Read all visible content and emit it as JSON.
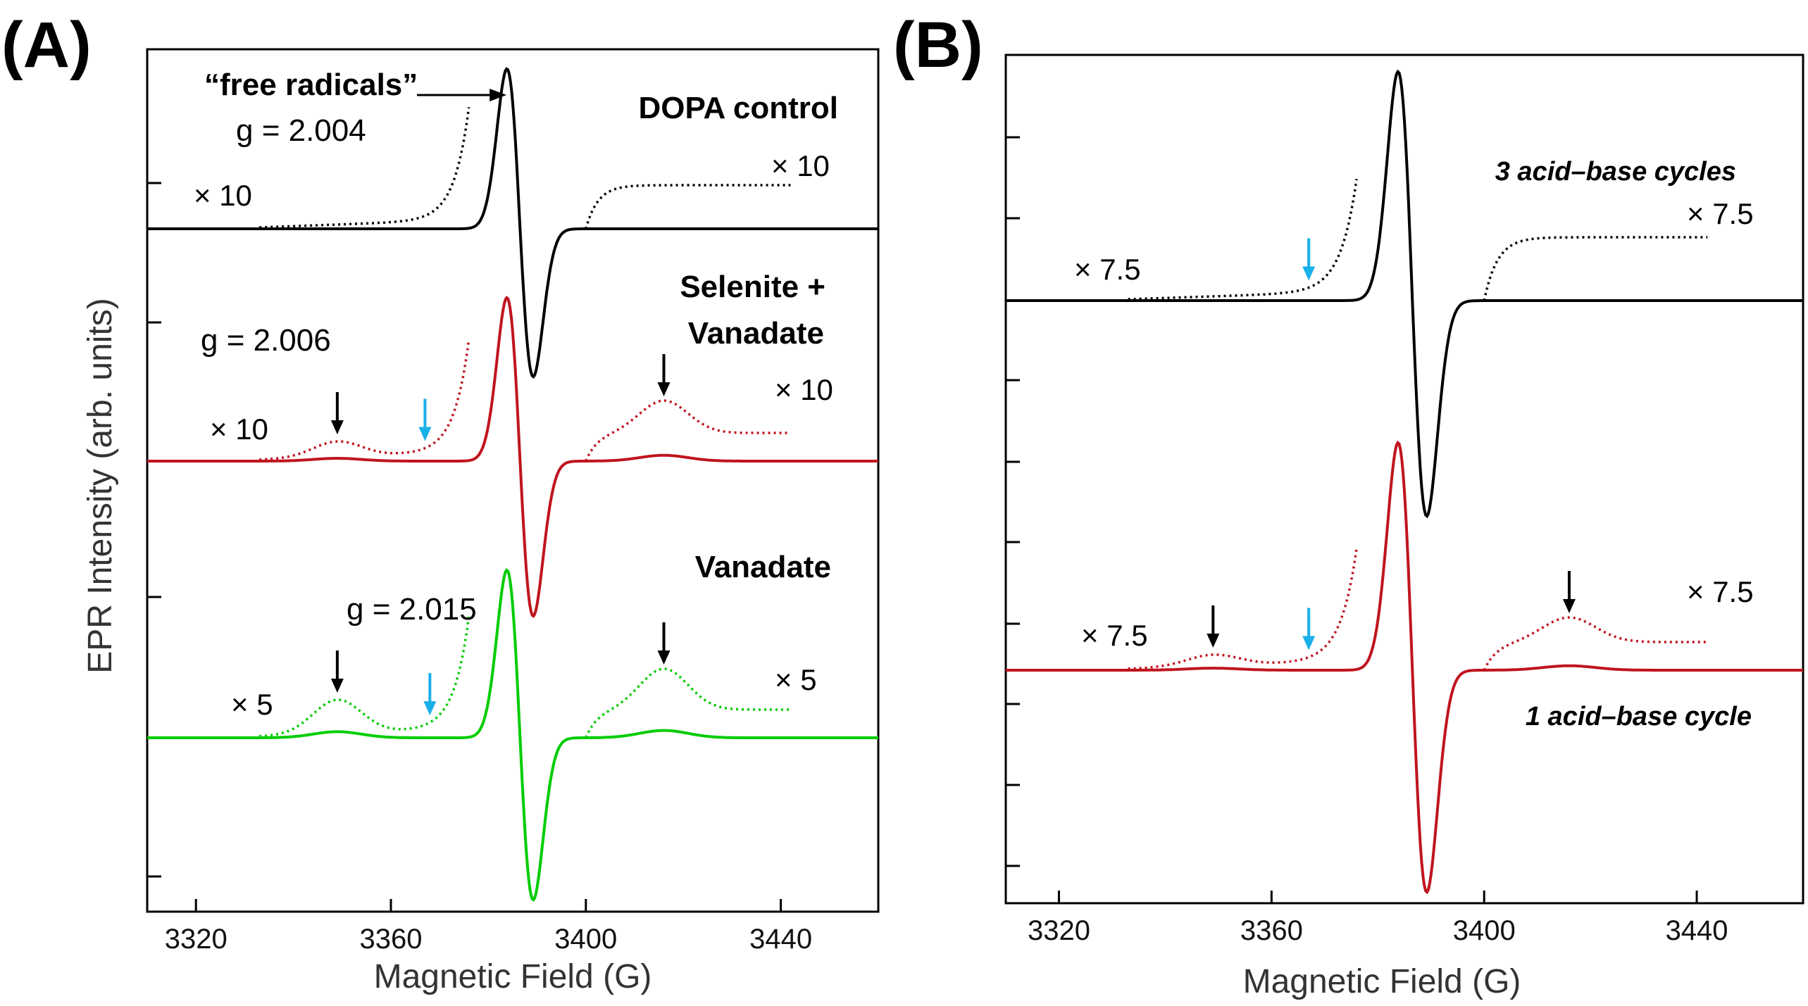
{
  "chart_data": [
    {
      "type": "line",
      "panel_label": "(A)",
      "xlabel": "Magnetic  Field (G)",
      "ylabel": "EPR  Intensity (arb.  units)",
      "xlim": [
        3310,
        3460
      ],
      "x_ticks": [
        3320,
        3360,
        3400,
        3440
      ],
      "x_tick_labels": [
        "3320",
        "3360",
        "3400",
        "3440"
      ],
      "series": [
        {
          "name": "DOPA control",
          "color": "#000000",
          "baseline_level": 0,
          "peak_center": 3386.5,
          "peak_up": 1.0,
          "peak_down": -1.0,
          "scale_label_left": "× 10",
          "scale_label_right": "× 10",
          "features": []
        },
        {
          "name": "Selenite + Vanadate",
          "color": "#c0141e",
          "baseline_level": -1,
          "peak_center": 3386.5,
          "peak_up": 1.0,
          "peak_down": -1.0,
          "scale_label_left": "× 10",
          "scale_label_right": "× 10",
          "features": [
            {
              "field": 3349,
              "marker": "black"
            },
            {
              "field": 3367,
              "marker": "cyan"
            },
            {
              "field": 3416,
              "marker": "black"
            }
          ]
        },
        {
          "name": "Vanadate",
          "color": "#00cc00",
          "baseline_level": -2,
          "peak_center": 3386.5,
          "peak_up": 1.0,
          "peak_down": -1.0,
          "scale_label_left": "× 5",
          "scale_label_right": "× 5",
          "features": [
            {
              "field": 3349,
              "marker": "black"
            },
            {
              "field": 3368,
              "marker": "cyan"
            },
            {
              "field": 3416,
              "marker": "black"
            }
          ]
        }
      ],
      "annotations": {
        "free_radicals": "“free radicals”",
        "g_dopa": "g = 2.004",
        "g_selenite": "g = 2.006",
        "g_vanadate": "g = 2.015",
        "label_dopa": "DOPA control",
        "label_selenite_1": "Selenite +",
        "label_selenite_2": "Vanadate",
        "label_vanadate": "Vanadate"
      }
    },
    {
      "type": "line",
      "panel_label": "(B)",
      "xlabel": "Magnetic  Field (G)",
      "ylabel": "",
      "xlim": [
        3310,
        3460
      ],
      "x_ticks": [
        3320,
        3360,
        3400,
        3440
      ],
      "x_tick_labels": [
        "3320",
        "3360",
        "3400",
        "3440"
      ],
      "series": [
        {
          "name": "3 acid–base cycles",
          "color": "#000000",
          "baseline_level": 0,
          "peak_center": 3386.5,
          "peak_up": 1.0,
          "peak_down": -1.0,
          "scale_label_left": "× 7.5",
          "scale_label_right": "× 7.5",
          "features": [
            {
              "field": 3367,
              "marker": "cyan"
            }
          ]
        },
        {
          "name": "1 acid–base cycle",
          "color": "#c0141e",
          "baseline_level": -1,
          "peak_center": 3386.5,
          "peak_up": 1.0,
          "peak_down": -1.0,
          "scale_label_left": "× 7.5",
          "scale_label_right": "× 7.5",
          "features": [
            {
              "field": 3349,
              "marker": "black"
            },
            {
              "field": 3367,
              "marker": "cyan"
            },
            {
              "field": 3416,
              "marker": "black"
            }
          ]
        }
      ],
      "annotations": {
        "label_top": "3 acid–base cycles",
        "label_bottom": "1 acid–base cycle"
      }
    }
  ]
}
